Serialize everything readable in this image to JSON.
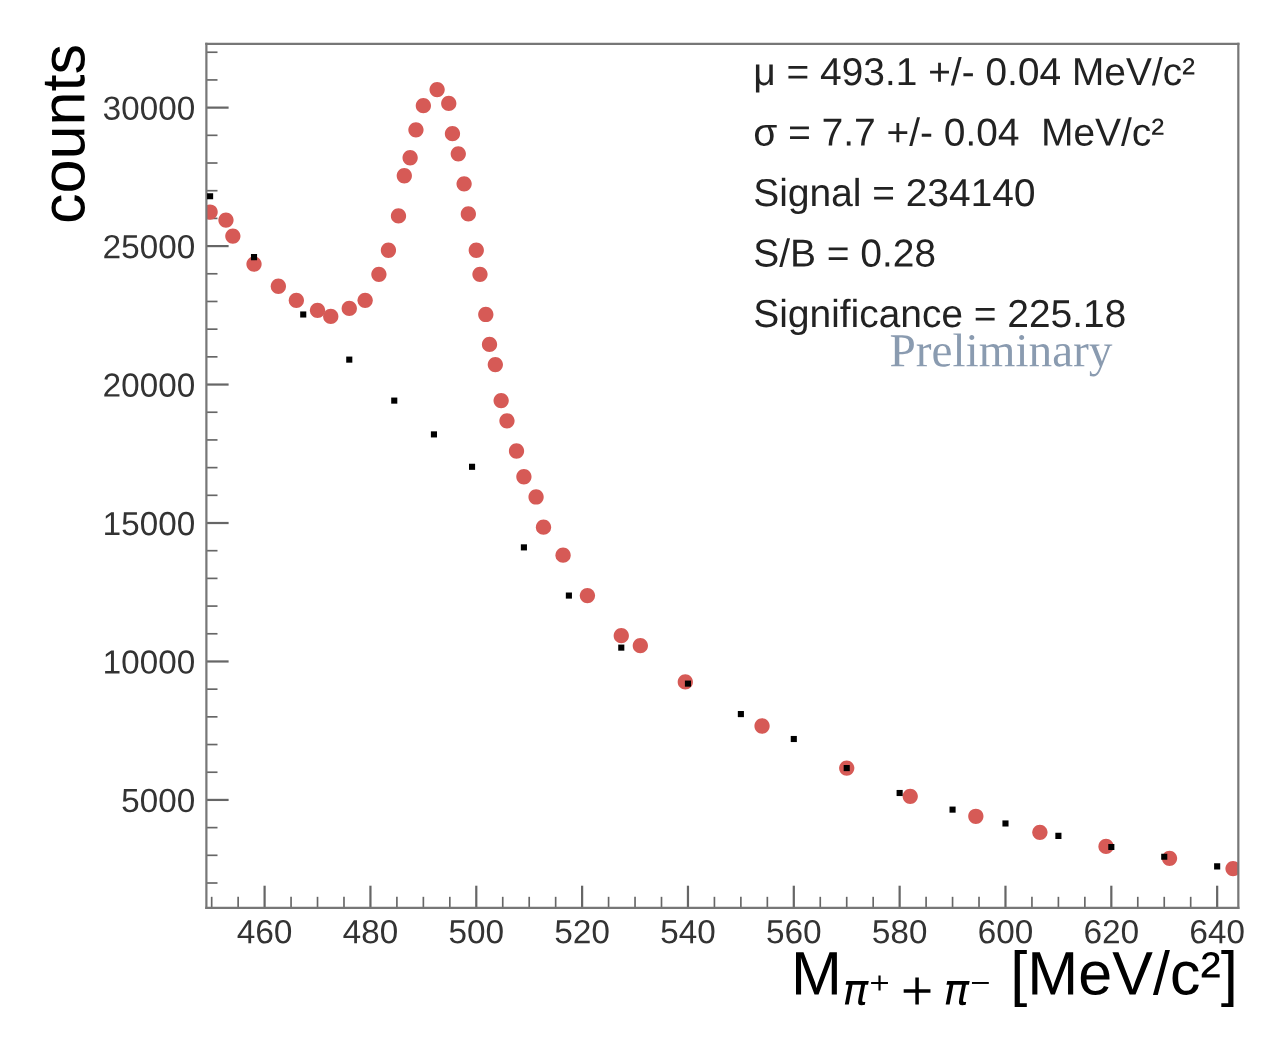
{
  "chart_data": {
    "type": "scatter",
    "xlabel": "M$_{π⁺+π⁻}$ [MeV/c²]",
    "ylabel": "counts",
    "annotations": [
      "μ = 493.1 +/- 0.04 MeV/c²",
      "σ = 7.7 +/- 0.04  MeV/c²",
      "Signal = 234140",
      "S/B = 0.28",
      "Significance = 225.18",
      "Preliminary"
    ],
    "series": [
      {
        "color": "#d65a56",
        "marker": "circle",
        "x": [
          449.7,
          452.7,
          454,
          458,
          462.6,
          466,
          470,
          472.5,
          476,
          479,
          481.6,
          483.4,
          485.3,
          486.4,
          487.5,
          488.6,
          490,
          492.6,
          494.8,
          495.5,
          496.6,
          497.7,
          498.5,
          500,
          500.7,
          501.8,
          502.5,
          503.6,
          504.7,
          505.8,
          507.6,
          509,
          511.3,
          512.7,
          516.4,
          521,
          527.4,
          531,
          539.5,
          554,
          570,
          582,
          594.4,
          606.5,
          619,
          631,
          643
        ],
        "values": [
          26230,
          25940,
          25360,
          24350,
          23550,
          23040,
          22680,
          22460,
          22750,
          23040,
          23980,
          24850,
          26090,
          27540,
          28190,
          29200,
          30070,
          30650,
          30150,
          29060,
          28330,
          27250,
          26160,
          24850,
          23980,
          22530,
          21450,
          20720,
          19420,
          18690,
          17600,
          16670,
          15940,
          14850,
          13840,
          12380,
          10930,
          10570,
          9260,
          7670,
          6150,
          5130,
          4410,
          3830,
          3320,
          2890,
          2520
        ]
      },
      {
        "color": "#000000",
        "marker": "square",
        "x": [
          449.7,
          458,
          467.3,
          476,
          484.5,
          492,
          499.2,
          509,
          517.5,
          527.4,
          540,
          550,
          560,
          570,
          580,
          590,
          600,
          610,
          620,
          630,
          640
        ],
        "values": [
          26800,
          24600,
          22530,
          20900,
          19420,
          18200,
          17030,
          14120,
          12380,
          10500,
          9200,
          8100,
          7200,
          6150,
          5250,
          4650,
          4150,
          3700,
          3300,
          2950,
          2600
        ]
      }
    ],
    "xlim": [
      449,
      644
    ],
    "xticks": [
      460,
      480,
      500,
      520,
      540,
      560,
      580,
      600,
      620,
      640
    ],
    "ylim": [
      1100,
      32300
    ],
    "yticks": [
      5000,
      10000,
      15000,
      20000,
      25000,
      30000
    ],
    "grid": false
  }
}
